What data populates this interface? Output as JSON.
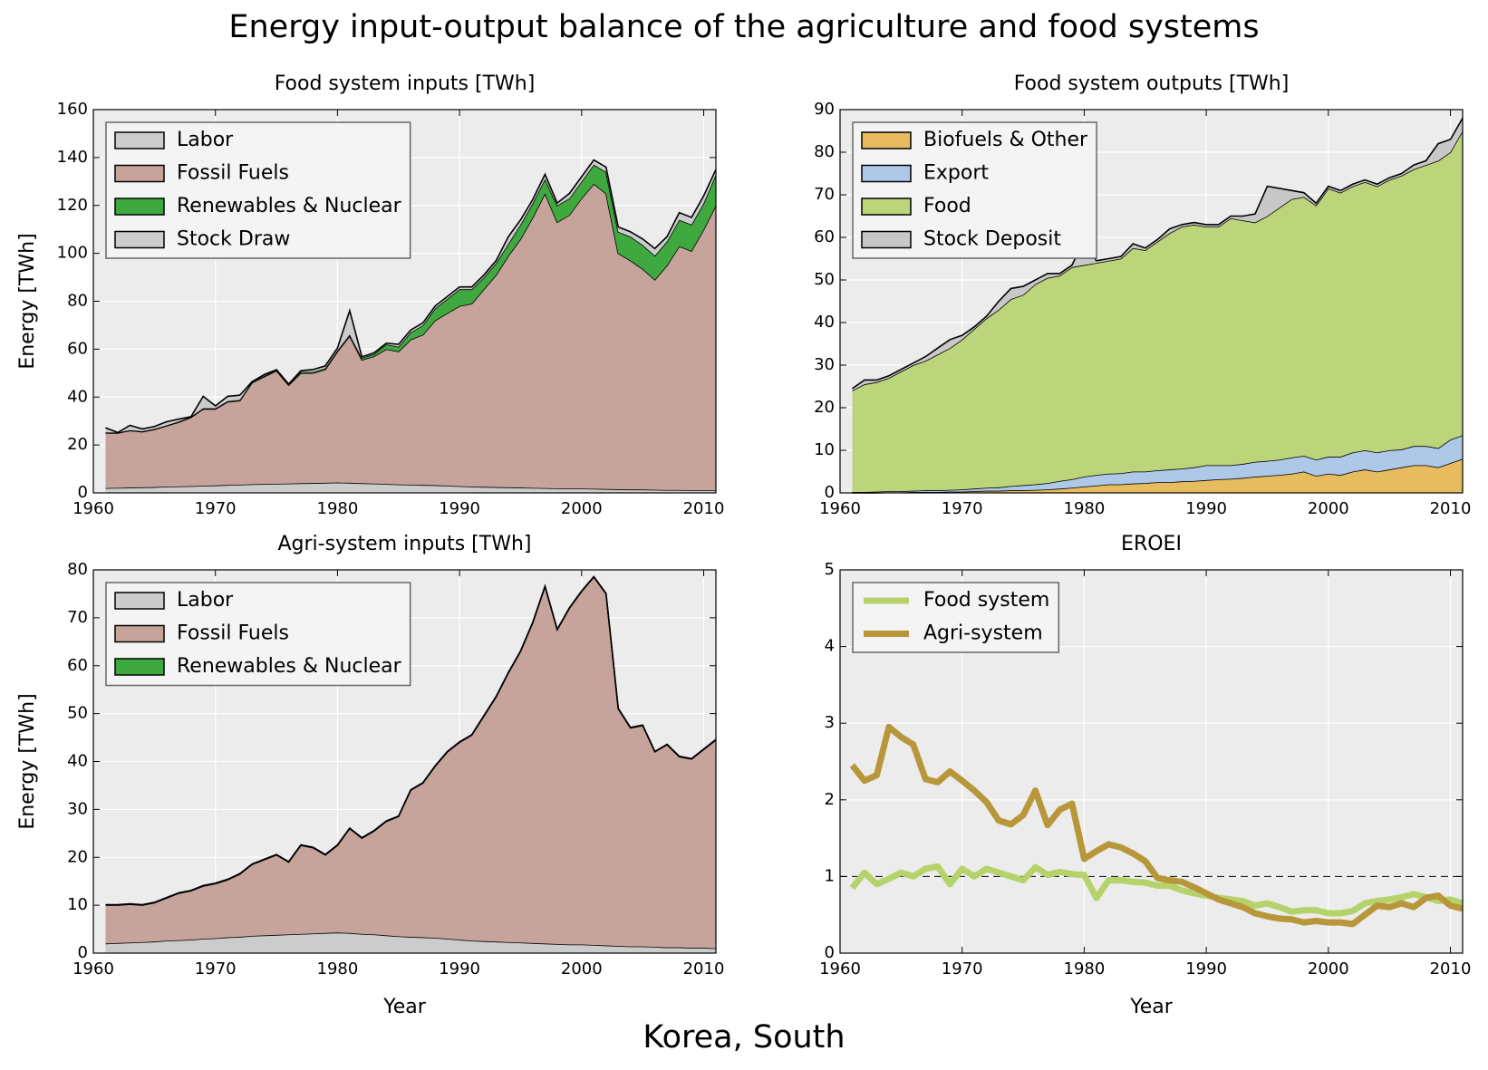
{
  "title": "Energy input-output balance of the agriculture and food systems",
  "country": "Korea, South",
  "chart_data": [
    {
      "type": "area",
      "stacked": true,
      "title": "Food system inputs [TWh]",
      "ylabel": "Energy [TWh]",
      "legend": "upper left",
      "grid": true,
      "x": [
        1961,
        1962,
        1963,
        1964,
        1965,
        1966,
        1967,
        1968,
        1969,
        1970,
        1971,
        1972,
        1973,
        1974,
        1975,
        1976,
        1977,
        1978,
        1979,
        1980,
        1981,
        1982,
        1983,
        1984,
        1985,
        1986,
        1987,
        1988,
        1989,
        1990,
        1991,
        1992,
        1993,
        1994,
        1995,
        1996,
        1997,
        1998,
        1999,
        2000,
        2001,
        2002,
        2003,
        2004,
        2005,
        2006,
        2007,
        2008,
        2009,
        2010,
        2011
      ],
      "series": [
        {
          "name": "Labor",
          "color": "#cccccc",
          "values": [
            2.0,
            2.1,
            2.2,
            2.3,
            2.4,
            2.6,
            2.7,
            2.8,
            3.0,
            3.1,
            3.3,
            3.4,
            3.6,
            3.7,
            3.8,
            3.9,
            4.0,
            4.1,
            4.2,
            4.3,
            4.2,
            4.0,
            3.9,
            3.7,
            3.5,
            3.4,
            3.3,
            3.2,
            3.0,
            2.8,
            2.6,
            2.5,
            2.4,
            2.3,
            2.2,
            2.1,
            2.0,
            1.9,
            1.8,
            1.8,
            1.7,
            1.6,
            1.5,
            1.4,
            1.4,
            1.3,
            1.2,
            1.2,
            1.1,
            1.1,
            1.0
          ]
        },
        {
          "name": "Fossil Fuels",
          "color": "#c6a49c",
          "values": [
            23,
            22.9,
            23.8,
            23.2,
            24.1,
            25.4,
            26.8,
            28.7,
            32,
            31.9,
            34.7,
            35.1,
            42.4,
            44.8,
            47.2,
            41.1,
            46,
            45.9,
            47.3,
            54.7,
            61.3,
            51.5,
            53.1,
            56.3,
            55.5,
            60.6,
            62.7,
            68.8,
            72,
            75.2,
            76.4,
            82.5,
            88.6,
            96.7,
            103.8,
            112.9,
            123,
            111.1,
            114.2,
            121.2,
            127.3,
            123.4,
            98.5,
            95.6,
            92.1,
            87.7,
            93.8,
            101.8,
            99.9,
            108.9,
            119
          ]
        },
        {
          "name": "Renewables & Nuclear",
          "color": "#3fa83f",
          "values": [
            0.2,
            0.2,
            0.2,
            0.2,
            0.2,
            0.2,
            0.3,
            0.3,
            0.3,
            0.3,
            0.3,
            0.3,
            0.4,
            0.4,
            0.4,
            0.4,
            0.5,
            0.5,
            0.5,
            0.5,
            0.6,
            0.8,
            1,
            2,
            2,
            3,
            4,
            5,
            6,
            7,
            6,
            5,
            5,
            5,
            6,
            6,
            6,
            7,
            7,
            7,
            8,
            9,
            9,
            10,
            10,
            10,
            10,
            11,
            11,
            11,
            13
          ]
        },
        {
          "name": "Stock Draw",
          "color": "#cccccc",
          "values": [
            2,
            0,
            2,
            1,
            1,
            1.5,
            1,
            0,
            5,
            1,
            2,
            2,
            0,
            0.5,
            0,
            0,
            0.5,
            1,
            1,
            1,
            10,
            0.5,
            0.5,
            0.5,
            1,
            1,
            1,
            1,
            1,
            1,
            1,
            1,
            1,
            3,
            2,
            1.5,
            2,
            1,
            2,
            2,
            2,
            2,
            2,
            2,
            2.5,
            3,
            2,
            3,
            3,
            3,
            2
          ]
        }
      ],
      "xlim": [
        1960,
        2011
      ],
      "xticks": [
        1960,
        1970,
        1980,
        1990,
        2000,
        2010
      ],
      "ylim": [
        0,
        160
      ],
      "yticks": [
        0,
        20,
        40,
        60,
        80,
        100,
        120,
        140,
        160
      ]
    },
    {
      "type": "area",
      "stacked": true,
      "title": "Food system outputs [TWh]",
      "legend": "upper left",
      "grid": true,
      "x": [
        1961,
        1962,
        1963,
        1964,
        1965,
        1966,
        1967,
        1968,
        1969,
        1970,
        1971,
        1972,
        1973,
        1974,
        1975,
        1976,
        1977,
        1978,
        1979,
        1980,
        1981,
        1982,
        1983,
        1984,
        1985,
        1986,
        1987,
        1988,
        1989,
        1990,
        1991,
        1992,
        1993,
        1994,
        1995,
        1996,
        1997,
        1998,
        1999,
        2000,
        2001,
        2002,
        2003,
        2004,
        2005,
        2006,
        2007,
        2008,
        2009,
        2010,
        2011
      ],
      "series": [
        {
          "name": "Biofuels & Other",
          "color": "#e6bc5e",
          "values": [
            0,
            0,
            0,
            0.1,
            0.1,
            0.2,
            0.2,
            0.2,
            0.3,
            0.3,
            0.4,
            0.5,
            0.5,
            0.6,
            0.6,
            0.7,
            0.8,
            1,
            1.2,
            1.5,
            1.7,
            2,
            2,
            2.2,
            2.3,
            2.5,
            2.5,
            2.7,
            2.8,
            3,
            3.2,
            3.3,
            3.5,
            3.8,
            4,
            4.2,
            4.5,
            5,
            4,
            4.5,
            4.2,
            5,
            5.5,
            5,
            5.5,
            6,
            6.5,
            6.5,
            6,
            7,
            8
          ]
        },
        {
          "name": "Export",
          "color": "#aec8e8",
          "values": [
            0.2,
            0.2,
            0.3,
            0.3,
            0.3,
            0.3,
            0.4,
            0.4,
            0.4,
            0.5,
            0.6,
            0.7,
            0.8,
            1,
            1.2,
            1.3,
            1.5,
            1.8,
            2,
            2.3,
            2.5,
            2.5,
            2.6,
            2.8,
            2.7,
            2.8,
            3,
            3,
            3.2,
            3.5,
            3.3,
            3.2,
            3.3,
            3.5,
            3.5,
            3.6,
            3.8,
            3.7,
            3.8,
            4,
            4.3,
            4.5,
            4.5,
            4.5,
            4.5,
            4.2,
            4.5,
            4.5,
            4.5,
            5.5,
            5.5
          ]
        },
        {
          "name": "Food",
          "color": "#bcd47a",
          "values": [
            23.8,
            25.3,
            25.7,
            26.6,
            28.1,
            29.5,
            30.4,
            31.9,
            33.3,
            35.2,
            37.5,
            39.8,
            41.7,
            43.9,
            44.7,
            47,
            48.2,
            48.2,
            49.8,
            49.7,
            49.8,
            50,
            50.4,
            52.5,
            52,
            53.7,
            55.5,
            56.8,
            57,
            56,
            56,
            58,
            57.2,
            56.2,
            57.5,
            59.2,
            60.7,
            60.8,
            59.7,
            63,
            62,
            62.5,
            63,
            62.5,
            63.5,
            64.3,
            65,
            66,
            67.5,
            67.5,
            71.5
          ]
        },
        {
          "name": "Stock Deposit",
          "color": "#c8c8c8",
          "values": [
            0.5,
            1,
            0.5,
            0.5,
            0.5,
            0.5,
            1,
            1.5,
            2,
            1,
            0.5,
            0.5,
            2,
            2.5,
            2,
            1,
            1,
            0.5,
            0.5,
            6,
            0.5,
            0.5,
            0.5,
            1,
            0.5,
            0.5,
            1,
            0.5,
            0.5,
            0.5,
            0.5,
            0.5,
            1,
            2,
            7,
            4.5,
            2,
            1,
            0.5,
            0.5,
            0.5,
            0.5,
            0.5,
            0.5,
            0.5,
            0.5,
            1,
            1,
            4,
            3,
            3
          ]
        }
      ],
      "xlim": [
        1960,
        2011
      ],
      "xticks": [
        1960,
        1970,
        1980,
        1990,
        2000,
        2010
      ],
      "ylim": [
        0,
        90
      ],
      "yticks": [
        0,
        10,
        20,
        30,
        40,
        50,
        60,
        70,
        80,
        90
      ]
    },
    {
      "type": "area",
      "stacked": true,
      "title": "Agri-system inputs [TWh]",
      "ylabel": "Energy [TWh]",
      "xlabel": "Year",
      "legend": "upper left",
      "grid": true,
      "x": [
        1961,
        1962,
        1963,
        1964,
        1965,
        1966,
        1967,
        1968,
        1969,
        1970,
        1971,
        1972,
        1973,
        1974,
        1975,
        1976,
        1977,
        1978,
        1979,
        1980,
        1981,
        1982,
        1983,
        1984,
        1985,
        1986,
        1987,
        1988,
        1989,
        1990,
        1991,
        1992,
        1993,
        1994,
        1995,
        1996,
        1997,
        1998,
        1999,
        2000,
        2001,
        2002,
        2003,
        2004,
        2005,
        2006,
        2007,
        2008,
        2009,
        2010,
        2011
      ],
      "series": [
        {
          "name": "Labor",
          "color": "#cccccc",
          "values": [
            2.0,
            2.1,
            2.2,
            2.3,
            2.4,
            2.6,
            2.7,
            2.8,
            3.0,
            3.1,
            3.3,
            3.4,
            3.6,
            3.7,
            3.8,
            3.9,
            4.0,
            4.1,
            4.2,
            4.3,
            4.2,
            4.0,
            3.9,
            3.7,
            3.5,
            3.4,
            3.3,
            3.2,
            3.0,
            2.8,
            2.6,
            2.5,
            2.4,
            2.3,
            2.2,
            2.1,
            2.0,
            1.9,
            1.8,
            1.8,
            1.7,
            1.6,
            1.5,
            1.4,
            1.4,
            1.3,
            1.2,
            1.2,
            1.1,
            1.1,
            1.0
          ]
        },
        {
          "name": "Fossil Fuels",
          "color": "#c6a49c",
          "values": [
            8,
            7.9,
            8,
            7.7,
            8.1,
            8.9,
            9.8,
            10.2,
            11,
            11.4,
            12,
            13.1,
            14.9,
            15.8,
            16.7,
            15.1,
            18.5,
            17.9,
            16.3,
            18.2,
            21.8,
            20,
            21.6,
            23.8,
            25,
            30.6,
            32.2,
            35.8,
            39,
            41.2,
            42.9,
            47,
            51.1,
            56.2,
            60.8,
            66.9,
            74.5,
            65.6,
            70.2,
            73.7,
            76.8,
            73.4,
            49.5,
            45.6,
            46.1,
            40.7,
            42.3,
            39.8,
            39.4,
            41.4,
            43.5
          ]
        },
        {
          "name": "Renewables & Nuclear",
          "color": "#3fa83f",
          "values": [
            0.1,
            0.1,
            0.1,
            0.1,
            0.1,
            0.1,
            0.1,
            0.1,
            0.1,
            0.1,
            0.1,
            0.1,
            0.1,
            0.1,
            0.1,
            0.1,
            0.1,
            0.1,
            0.1,
            0.1,
            0.1,
            0.1,
            0.1,
            0.1,
            0.1,
            0.1,
            0.1,
            0.1,
            0.1,
            0.1,
            0.1,
            0.1,
            0.1,
            0.1,
            0.1,
            0.1,
            0.1,
            0.1,
            0.1,
            0.1,
            0.1,
            0.1,
            0.1,
            0.1,
            0.1,
            0.1,
            0.1,
            0.1,
            0.1,
            0.1,
            0.1
          ]
        }
      ],
      "xlim": [
        1960,
        2011
      ],
      "xticks": [
        1960,
        1970,
        1980,
        1990,
        2000,
        2010
      ],
      "ylim": [
        0,
        80
      ],
      "yticks": [
        0,
        10,
        20,
        30,
        40,
        50,
        60,
        70,
        80
      ]
    },
    {
      "type": "line",
      "title": "EROEI",
      "xlabel": "Year",
      "legend": "upper left",
      "grid": true,
      "ref_line": 1,
      "x": [
        1961,
        1962,
        1963,
        1964,
        1965,
        1966,
        1967,
        1968,
        1969,
        1970,
        1971,
        1972,
        1973,
        1974,
        1975,
        1976,
        1977,
        1978,
        1979,
        1980,
        1981,
        1982,
        1983,
        1984,
        1985,
        1986,
        1987,
        1988,
        1989,
        1990,
        1991,
        1992,
        1993,
        1994,
        1995,
        1996,
        1997,
        1998,
        1999,
        2000,
        2001,
        2002,
        2003,
        2004,
        2005,
        2006,
        2007,
        2008,
        2009,
        2010,
        2011
      ],
      "series": [
        {
          "name": "Food system",
          "color": "#b5d36a",
          "values": [
            0.85,
            1.05,
            0.9,
            0.97,
            1.05,
            1.0,
            1.1,
            1.13,
            0.9,
            1.1,
            1.0,
            1.1,
            1.05,
            1.0,
            0.95,
            1.12,
            1.02,
            1.06,
            1.03,
            1.02,
            0.72,
            0.95,
            0.95,
            0.93,
            0.92,
            0.88,
            0.88,
            0.82,
            0.78,
            0.75,
            0.72,
            0.7,
            0.68,
            0.62,
            0.65,
            0.6,
            0.54,
            0.56,
            0.56,
            0.52,
            0.52,
            0.55,
            0.65,
            0.68,
            0.7,
            0.73,
            0.77,
            0.73,
            0.68,
            0.7,
            0.65
          ]
        },
        {
          "name": "Agri-system",
          "color": "#b8963a",
          "values": [
            2.45,
            2.25,
            2.32,
            2.95,
            2.82,
            2.72,
            2.27,
            2.23,
            2.37,
            2.25,
            2.12,
            1.97,
            1.73,
            1.68,
            1.8,
            2.12,
            1.67,
            1.87,
            1.95,
            1.23,
            1.33,
            1.42,
            1.38,
            1.3,
            1.2,
            0.98,
            0.95,
            0.93,
            0.86,
            0.78,
            0.7,
            0.65,
            0.6,
            0.52,
            0.48,
            0.45,
            0.44,
            0.4,
            0.42,
            0.4,
            0.4,
            0.38,
            0.5,
            0.62,
            0.6,
            0.65,
            0.6,
            0.72,
            0.75,
            0.62,
            0.58
          ]
        }
      ],
      "xlim": [
        1960,
        2011
      ],
      "xticks": [
        1960,
        1970,
        1980,
        1990,
        2000,
        2010
      ],
      "ylim": [
        0,
        5
      ],
      "yticks": [
        0,
        1,
        2,
        3,
        4,
        5
      ]
    }
  ]
}
